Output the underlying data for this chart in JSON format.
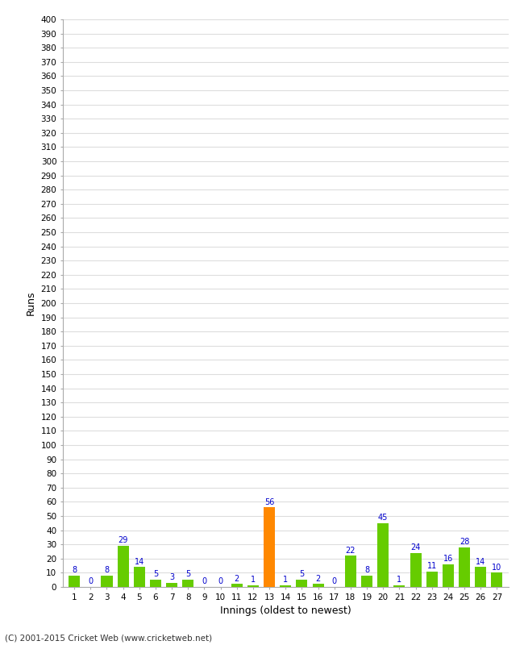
{
  "innings": [
    1,
    2,
    3,
    4,
    5,
    6,
    7,
    8,
    9,
    10,
    11,
    12,
    13,
    14,
    15,
    16,
    17,
    18,
    19,
    20,
    21,
    22,
    23,
    24,
    25,
    26,
    27
  ],
  "runs": [
    8,
    0,
    8,
    29,
    14,
    5,
    3,
    5,
    0,
    0,
    2,
    1,
    56,
    1,
    5,
    2,
    0,
    22,
    8,
    45,
    1,
    24,
    11,
    16,
    28,
    14,
    10
  ],
  "colors": [
    "#66cc00",
    "#66cc00",
    "#66cc00",
    "#66cc00",
    "#66cc00",
    "#66cc00",
    "#66cc00",
    "#66cc00",
    "#66cc00",
    "#66cc00",
    "#66cc00",
    "#66cc00",
    "#ff8800",
    "#66cc00",
    "#66cc00",
    "#66cc00",
    "#66cc00",
    "#66cc00",
    "#66cc00",
    "#66cc00",
    "#66cc00",
    "#66cc00",
    "#66cc00",
    "#66cc00",
    "#66cc00",
    "#66cc00",
    "#66cc00"
  ],
  "xlabel": "Innings (oldest to newest)",
  "ylabel": "Runs",
  "ylim": [
    0,
    400
  ],
  "yticks": [
    0,
    10,
    20,
    30,
    40,
    50,
    60,
    70,
    80,
    90,
    100,
    110,
    120,
    130,
    140,
    150,
    160,
    170,
    180,
    190,
    200,
    210,
    220,
    230,
    240,
    250,
    260,
    270,
    280,
    290,
    300,
    310,
    320,
    330,
    340,
    350,
    360,
    370,
    380,
    390,
    400
  ],
  "background_color": "#ffffff",
  "grid_color": "#dddddd",
  "label_color": "#0000cc",
  "footer": "(C) 2001-2015 Cricket Web (www.cricketweb.net)"
}
